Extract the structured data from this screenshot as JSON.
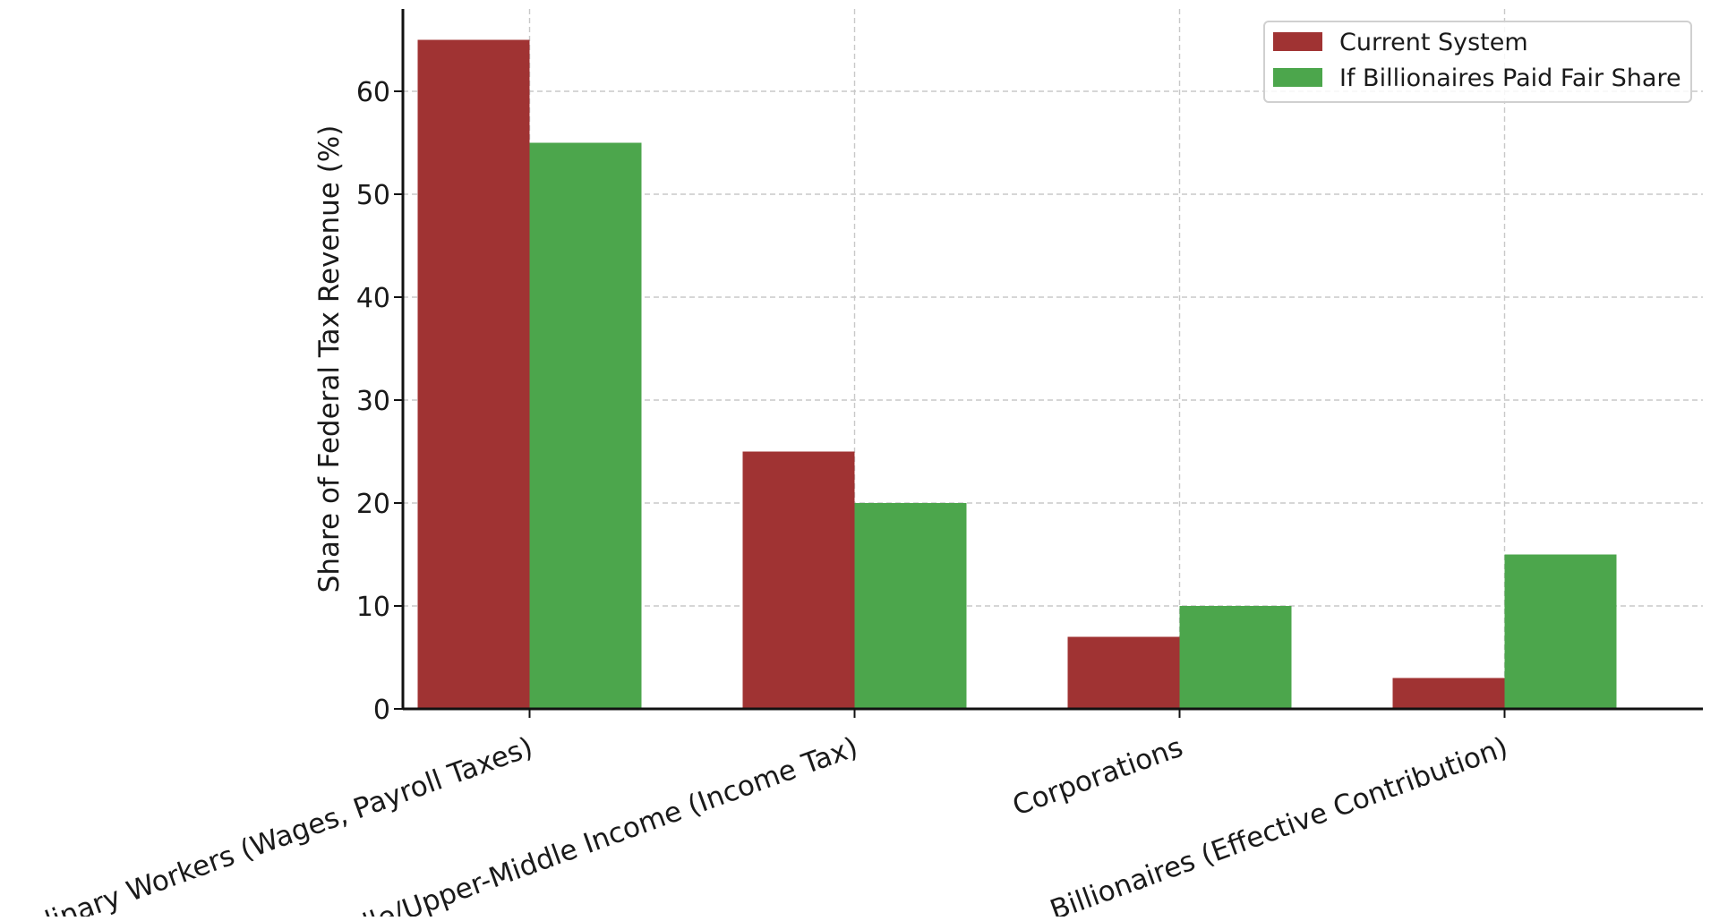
{
  "chart_data": {
    "type": "bar",
    "title": "",
    "xlabel": "",
    "ylabel": "Share of Federal Tax Revenue (%)",
    "ylim": [
      0,
      68
    ],
    "yticks": [
      0,
      10,
      20,
      30,
      40,
      50,
      60
    ],
    "grid": true,
    "legend_position": "top-right",
    "categories": [
      "Ordinary Workers (Wages, Payroll Taxes)",
      "Middle/Upper-Middle Income (Income Tax)",
      "Corporations",
      "Billionaires (Effective Contribution)"
    ],
    "series": [
      {
        "name": "Current System",
        "color": "#a03333",
        "values": [
          65,
          25,
          7,
          3
        ]
      },
      {
        "name": "If Billionaires Paid Fair Share",
        "color": "#4ca64c",
        "values": [
          55,
          20,
          10,
          15
        ]
      }
    ]
  }
}
